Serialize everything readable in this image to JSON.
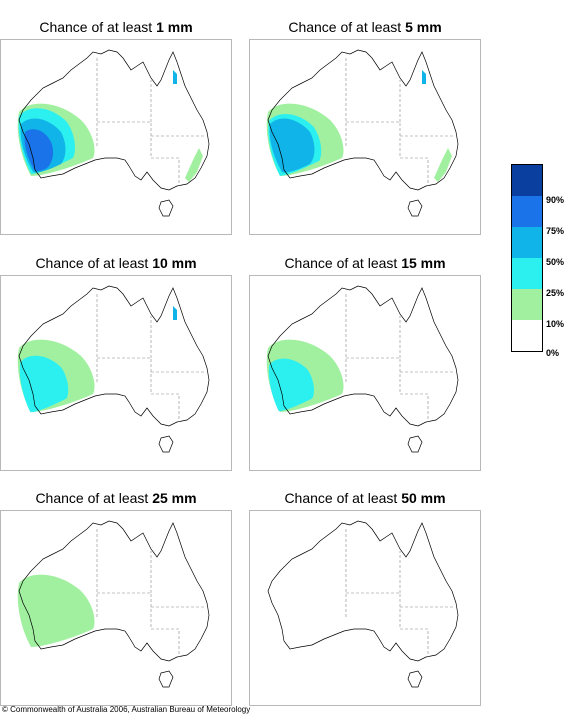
{
  "panels": [
    {
      "prefix": "Chance of at least",
      "amount": "1 mm",
      "levels": {
        "b25": true,
        "b50": true,
        "b75": true,
        "b90": false,
        "west_scale": 1.0,
        "east_green": true,
        "east_cyan": true
      }
    },
    {
      "prefix": "Chance of at least",
      "amount": "5 mm",
      "levels": {
        "b25": true,
        "b50": true,
        "b75": true,
        "b90": false,
        "west_scale": 0.85,
        "east_green": true,
        "east_cyan": true
      }
    },
    {
      "prefix": "Chance of at least",
      "amount": "10 mm",
      "levels": {
        "b25": true,
        "b50": true,
        "b75": false,
        "b90": false,
        "west_scale": 0.65,
        "east_green": false,
        "east_cyan": true
      }
    },
    {
      "prefix": "Chance of at least",
      "amount": "15 mm",
      "levels": {
        "b25": true,
        "b50": true,
        "b75": false,
        "b90": false,
        "west_scale": 0.5,
        "east_green": false,
        "east_cyan": false
      }
    },
    {
      "prefix": "Chance of at least",
      "amount": "25 mm",
      "levels": {
        "b25": true,
        "b50": false,
        "b75": false,
        "b90": false,
        "west_scale": 0.2,
        "east_green": false,
        "east_cyan": false
      }
    },
    {
      "prefix": "Chance of at least",
      "amount": "50 mm",
      "levels": {
        "b25": false,
        "b50": false,
        "b75": false,
        "b90": false,
        "west_scale": 0,
        "east_green": false,
        "east_cyan": false
      }
    }
  ],
  "legend": {
    "colors": [
      "#0a3fa0",
      "#1a73e8",
      "#10b4e8",
      "#2cf0f0",
      "#a0f0a0",
      "#ffffff"
    ],
    "labels": [
      "90%",
      "75%",
      "50%",
      "25%",
      "10%",
      "0%"
    ]
  },
  "copyright": "© Commonwealth of Australia 2006, Australian Bureau of Meteorology"
}
